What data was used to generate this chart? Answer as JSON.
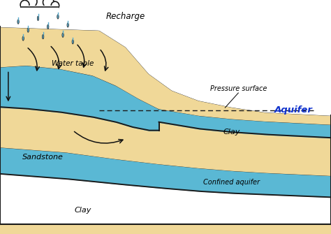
{
  "bg": "#ffffff",
  "sand": "#f0d898",
  "water": "#5ab8d4",
  "outline": "#1a1a1a",
  "arrow_color": "#111111",
  "blue_label": "#1133cc",
  "rain_color": "#5aabcc",
  "labels": {
    "recharge": "Recharge",
    "water_table": "Water table",
    "pressure_surface": "Pressure surface",
    "aquifer": "Aquifer",
    "sandstone": "Sandstone",
    "clay_right": "Clay",
    "clay_bottom": "Clay",
    "confined_aquifer": "Confined aquifer"
  }
}
